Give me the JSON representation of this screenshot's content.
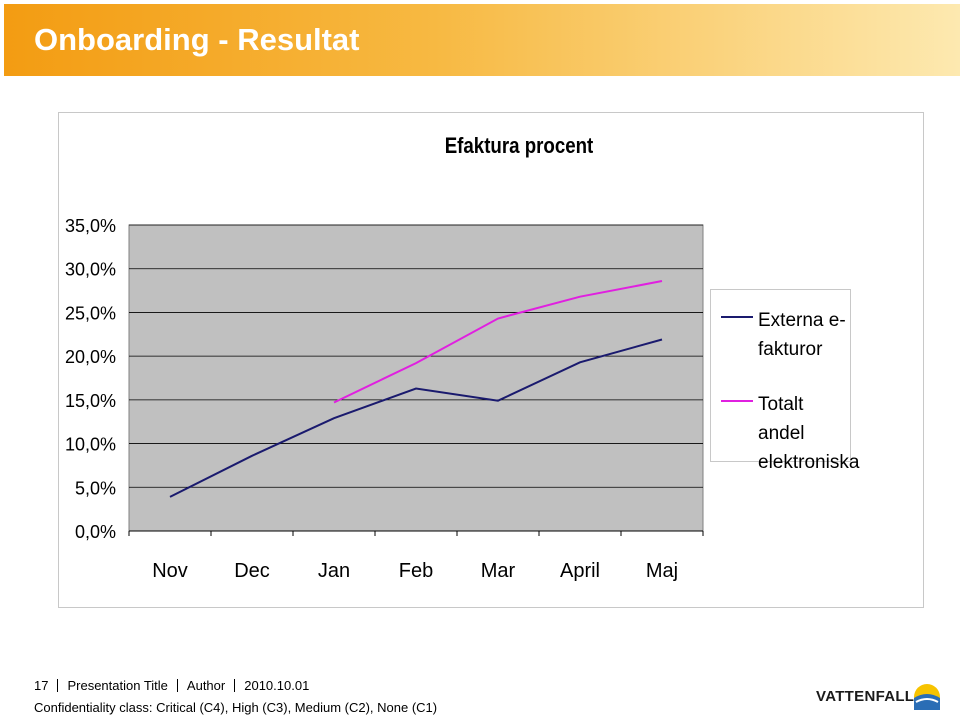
{
  "slide": {
    "title": "Onboarding - Resultat"
  },
  "footer": {
    "page_number": "17",
    "presentation_title": "Presentation Title",
    "author": "Author",
    "date": "2010.10.01",
    "confidentiality": "Confidentiality class: Critical (C4), High (C3), Medium (C2), None (C1)",
    "brand": "VATTENFALL"
  },
  "colors": {
    "header_orange": "#f39c12",
    "plot_background": "#c0c0c0",
    "series_externa": "#1a1a6e",
    "series_totalt": "#e020e0"
  },
  "chart_data": {
    "type": "line",
    "title": "Efaktura procent",
    "xlabel": "",
    "ylabel": "",
    "categories": [
      "Nov",
      "Dec",
      "Jan",
      "Feb",
      "Mar",
      "April",
      "Maj"
    ],
    "ylim": [
      0,
      35
    ],
    "yticks": [
      "0,0%",
      "5,0%",
      "10,0%",
      "15,0%",
      "20,0%",
      "25,0%",
      "30,0%",
      "35,0%"
    ],
    "grid": true,
    "legend_position": "right",
    "series": [
      {
        "name": "Externa e-fakturor",
        "color": "#1a1a6e",
        "values": [
          3.9,
          8.6,
          12.9,
          16.3,
          14.9,
          19.3,
          21.9
        ]
      },
      {
        "name": "Totalt andel elektroniska",
        "color": "#e020e0",
        "values": [
          null,
          null,
          14.7,
          19.2,
          24.3,
          26.8,
          28.6
        ]
      }
    ]
  }
}
